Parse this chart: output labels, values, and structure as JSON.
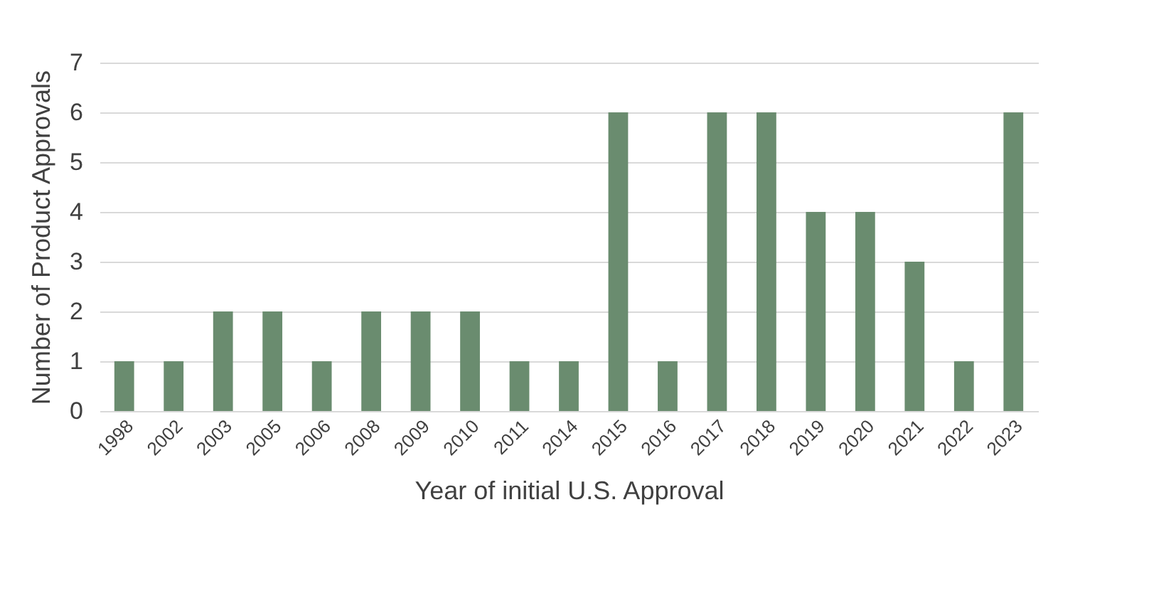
{
  "chart_data": {
    "type": "bar",
    "xlabel": "Year of initial U.S. Approval",
    "ylabel": "Number of Product Approvals",
    "categories": [
      "1998",
      "2002",
      "2003",
      "2005",
      "2006",
      "2008",
      "2009",
      "2010",
      "2011",
      "2014",
      "2015",
      "2016",
      "2017",
      "2018",
      "2019",
      "2020",
      "2021",
      "2022",
      "2023"
    ],
    "values": [
      1,
      1,
      2,
      2,
      1,
      2,
      2,
      2,
      1,
      1,
      6,
      1,
      6,
      6,
      4,
      4,
      3,
      1,
      6
    ],
    "color": "#6a8c6f",
    "ylim": [
      0,
      7
    ],
    "yticks": [
      0,
      1,
      2,
      3,
      4,
      5,
      6,
      7
    ],
    "grid": "y"
  }
}
